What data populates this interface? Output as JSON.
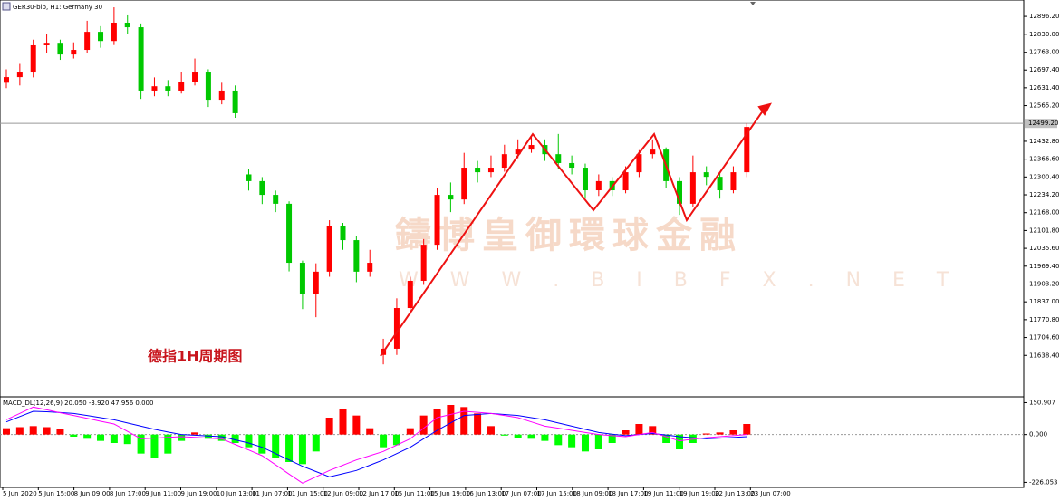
{
  "chart_data": [
    {
      "type": "candlestick",
      "title": "GER30-bib, H1:  Germany 30",
      "annotation": "德指1H周期图",
      "watermark": "鑄博皇御環球金融",
      "watermark_url": "W W W . B I B F X . N E T",
      "up_color": "#ff0000",
      "down_color": "#00c800",
      "open": [
        12650,
        12671,
        12688,
        12789,
        12795,
        12755,
        12772,
        12839,
        12805,
        12873,
        12856,
        12621,
        12637,
        12621,
        12654,
        12688,
        12587,
        12621,
        12310,
        12285,
        12234,
        12201,
        11982,
        11865,
        11949,
        12117,
        12066,
        11949,
        11640,
        11663,
        11814,
        11915,
        12049,
        12234,
        12217,
        12335,
        12318,
        12335,
        12385,
        12402,
        12419,
        12385,
        12352,
        12335,
        12251,
        12285,
        12251,
        12318,
        12385,
        12402,
        12285,
        12201,
        12318,
        12301,
        12251,
        12318
      ],
      "high": [
        12700,
        12720,
        12810,
        12830,
        12810,
        12800,
        12880,
        12860,
        12930,
        12900,
        12870,
        12670,
        12660,
        12690,
        12740,
        12700,
        12650,
        12640,
        12330,
        12300,
        12250,
        12210,
        11990,
        11980,
        12140,
        12130,
        12080,
        12030,
        11700,
        11850,
        11930,
        12070,
        12260,
        12280,
        12390,
        12360,
        12380,
        12420,
        12440,
        12450,
        12440,
        12460,
        12380,
        12350,
        12310,
        12300,
        12340,
        12400,
        12440,
        12410,
        12300,
        12380,
        12340,
        12320,
        12340,
        12500
      ],
      "low": [
        12630,
        12640,
        12670,
        12760,
        12735,
        12740,
        12760,
        12780,
        12790,
        12830,
        12590,
        12600,
        12600,
        12610,
        12640,
        12560,
        12570,
        12520,
        12250,
        12200,
        12170,
        11950,
        11810,
        11780,
        11930,
        12030,
        11910,
        11930,
        11605,
        11640,
        11790,
        11900,
        12030,
        12170,
        12200,
        12280,
        12300,
        12320,
        12370,
        12390,
        12360,
        12330,
        12310,
        12220,
        12230,
        12230,
        12240,
        12300,
        12370,
        12260,
        12160,
        12190,
        12270,
        12220,
        12240,
        12300
      ],
      "close": [
        12671,
        12688,
        12789,
        12795,
        12755,
        12772,
        12839,
        12805,
        12873,
        12856,
        12621,
        12637,
        12621,
        12654,
        12688,
        12587,
        12621,
        12537,
        12285,
        12234,
        12201,
        11982,
        11865,
        11949,
        12117,
        12066,
        11949,
        11982,
        11663,
        11814,
        11915,
        12049,
        12234,
        12217,
        12335,
        12318,
        12335,
        12385,
        12402,
        12419,
        12385,
        12352,
        12335,
        12251,
        12285,
        12251,
        12318,
        12385,
        12402,
        12285,
        12201,
        12318,
        12301,
        12251,
        12318,
        12486
      ],
      "current_price": {
        "value": 12499.2,
        "label": "12499.20"
      },
      "ylim": [
        11488,
        12957
      ],
      "yticks": [
        {
          "value": 12896.2,
          "label": "12896.20"
        },
        {
          "value": 12830,
          "label": "12830.00"
        },
        {
          "value": 12763,
          "label": "12763.00"
        },
        {
          "value": 12697.4,
          "label": "12697.40"
        },
        {
          "value": 12631.4,
          "label": "12631.40"
        },
        {
          "value": 12565.2,
          "label": "12565.20"
        },
        {
          "value": 12432.8,
          "label": "12432.80"
        },
        {
          "value": 12366.6,
          "label": "12366.60"
        },
        {
          "value": 12300.4,
          "label": "12300.40"
        },
        {
          "value": 12234.2,
          "label": "12234.20"
        },
        {
          "value": 12168,
          "label": "12168.00"
        },
        {
          "value": 12101.8,
          "label": "12101.80"
        },
        {
          "value": 12035.6,
          "label": "12035.60"
        },
        {
          "value": 11969.4,
          "label": "11969.40"
        },
        {
          "value": 11903.2,
          "label": "11903.20"
        },
        {
          "value": 11837,
          "label": "11837.00"
        },
        {
          "value": 11770.8,
          "label": "11770.80"
        },
        {
          "value": 11704.6,
          "label": "11704.60"
        },
        {
          "value": 11638.4,
          "label": "11638.40"
        }
      ],
      "x_labels": [
        "5 Jun 2020",
        "5 Jun 15:00",
        "8 Jun 09:00",
        "8 Jun 17:00",
        "9 Jun 11:00",
        "9 Jun 19:00",
        "10 Jun 13:00",
        "11 Jun 07:00",
        "11 Jun 15:00",
        "12 Jun 09:00",
        "12 Jun 17:00",
        "15 Jun 11:00",
        "15 Jun 19:00",
        "16 Jun 13:00",
        "17 Jun 07:00",
        "17 Jun 15:00",
        "18 Jun 09:00",
        "18 Jun 17:00",
        "19 Jun 11:00",
        "19 Jun 19:00",
        "22 Jun 13:00",
        "23 Jun 07:00"
      ]
    },
    {
      "type": "macd",
      "title": "MACD_DL(12,26,9) 20.050 -3.920 47.956 0.000",
      "pos_color": "#ff0000",
      "neg_color": "#00ff00",
      "values": [
        30,
        35,
        40,
        35,
        25,
        -10,
        -20,
        -30,
        -40,
        -45,
        -90,
        -110,
        -90,
        -30,
        10,
        -20,
        -30,
        -40,
        -60,
        -90,
        -110,
        -130,
        -140,
        -80,
        80,
        120,
        90,
        30,
        -60,
        -50,
        30,
        90,
        120,
        140,
        130,
        100,
        40,
        -5,
        -15,
        -20,
        -30,
        -50,
        -60,
        -80,
        -70,
        -40,
        20,
        50,
        40,
        -40,
        -70,
        -40,
        5,
        10,
        20,
        50
      ],
      "series": [
        {
          "color": "#0000ff",
          "values": [
            60,
            85,
            110,
            108,
            104,
            100,
            90,
            80,
            70,
            55,
            40,
            25,
            12,
            0,
            -3,
            -7,
            -10,
            -25,
            -40,
            -60,
            -90,
            -120,
            -150,
            -175,
            -200,
            -185,
            -170,
            -145,
            -120,
            -90,
            -60,
            -20,
            20,
            55,
            90,
            95,
            100,
            95,
            90,
            80,
            70,
            55,
            40,
            25,
            10,
            2,
            -5,
            0,
            5,
            -2,
            -10,
            -15,
            -20,
            -17,
            -14,
            -10
          ]
        },
        {
          "color": "#ff00ff",
          "values": [
            70,
            100,
            130,
            117,
            103,
            90,
            77,
            63,
            50,
            15,
            -20,
            -17,
            -13,
            -10,
            -13,
            -17,
            -20,
            -47,
            -73,
            -100,
            -143,
            -187,
            -230,
            -200,
            -170,
            -145,
            -120,
            -100,
            -80,
            -50,
            -20,
            30,
            80,
            95,
            110,
            105,
            100,
            90,
            80,
            60,
            40,
            30,
            20,
            10,
            0,
            -5,
            -10,
            0,
            10,
            -10,
            -30,
            -22,
            -15,
            -10,
            -5,
            0
          ]
        }
      ],
      "ylim": [
        -250,
        170
      ],
      "yticks": [
        {
          "value": 150.907,
          "label": "150.907"
        },
        {
          "value": 0,
          "label": "0.000"
        },
        {
          "value": -226.053,
          "label": "-226.053"
        }
      ]
    }
  ]
}
